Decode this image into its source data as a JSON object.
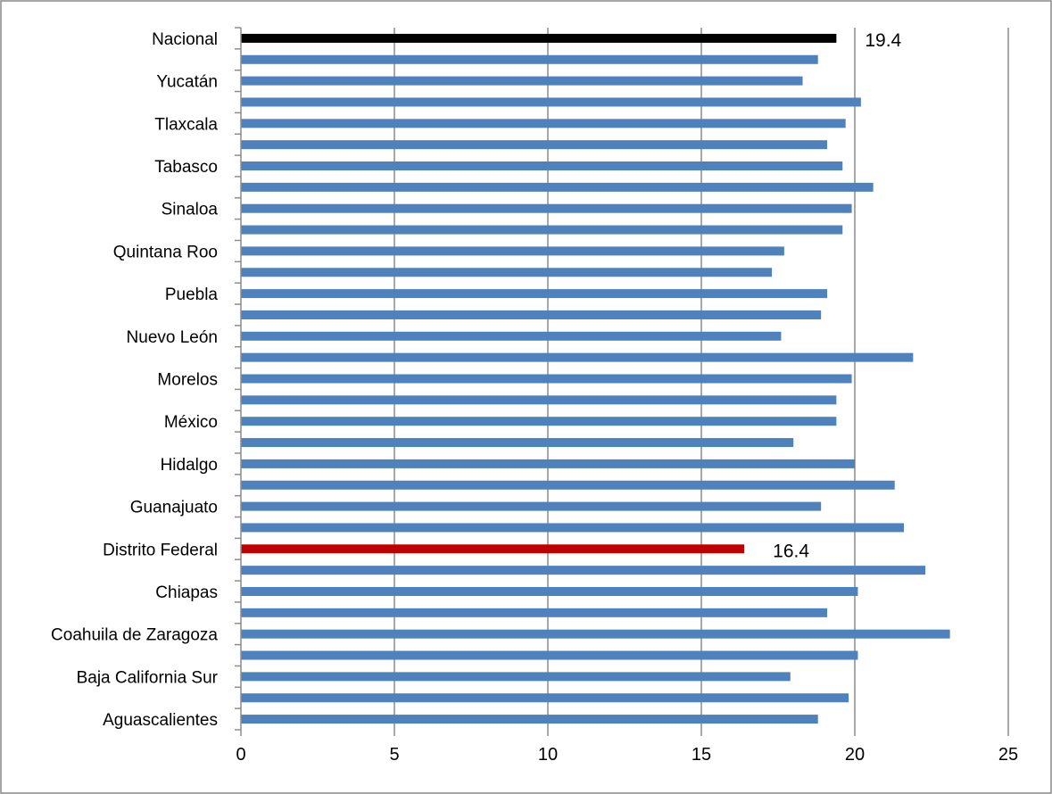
{
  "colors": {
    "default_bar": "#4f81bd",
    "national_bar": "#000000",
    "distrito_federal_bar": "#c00000"
  },
  "chart_data": {
    "type": "bar",
    "orientation": "horizontal",
    "title": "",
    "xlabel": "",
    "ylabel": "",
    "xlim": [
      0,
      25
    ],
    "x_ticks": [
      "0",
      "5",
      "10",
      "15",
      "20",
      "25"
    ],
    "grid": "vertical gridlines on",
    "legend": "none",
    "categories": [
      "Nacional",
      "",
      "Yucatán",
      "",
      "Tlaxcala",
      "",
      "Tabasco",
      "",
      "Sinaloa",
      "",
      "Quintana Roo",
      "",
      "Puebla",
      "",
      "Nuevo León",
      "",
      "Morelos",
      "",
      "México",
      "",
      "Hidalgo",
      "",
      "Guanajuato",
      "",
      "Distrito Federal",
      "",
      "Chiapas",
      "",
      "Coahuila de Zaragoza",
      "",
      "Baja California Sur",
      "",
      "Aguascalientes"
    ],
    "values": [
      19.4,
      18.8,
      18.3,
      20.2,
      19.7,
      19.1,
      19.6,
      20.6,
      19.9,
      19.6,
      17.7,
      17.3,
      19.1,
      18.9,
      17.6,
      21.9,
      19.9,
      19.4,
      19.4,
      18.0,
      20.0,
      21.3,
      18.9,
      21.6,
      16.4,
      22.3,
      20.1,
      19.1,
      23.1,
      20.1,
      17.9,
      19.8,
      18.8
    ],
    "highlights": [
      {
        "index": 0,
        "color": "#000000",
        "label": "19.4"
      },
      {
        "index": 24,
        "color": "#c00000",
        "label": "16.4"
      }
    ]
  }
}
